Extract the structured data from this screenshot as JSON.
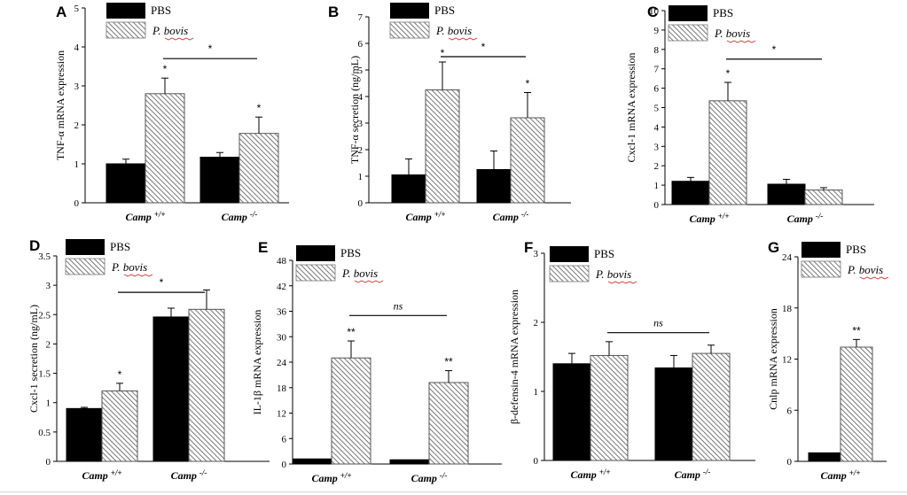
{
  "colors": {
    "pbs": "#000000",
    "p_bovis_stroke": "#555555",
    "axis": "#000000",
    "spellcheck": "#d42a2a"
  },
  "legend": {
    "pbs_label": "PBS",
    "p_bovis_label": "P. bovis"
  },
  "chart_data": [
    {
      "panel": "A",
      "type": "bar",
      "ylabel": "TNF-α mRNA expression",
      "ylim": [
        0,
        5
      ],
      "yticks": [
        0,
        1,
        2,
        3,
        4,
        5
      ],
      "ytick_labels": [
        "0",
        "1",
        "2",
        "3",
        "4",
        "5"
      ],
      "categories": [
        {
          "name": "Camp",
          "sup": "+/+"
        },
        {
          "name": "Camp",
          "sup": "-/-"
        }
      ],
      "series": [
        {
          "name": "PBS",
          "values": [
            1.0,
            1.17
          ],
          "errors": [
            0.12,
            0.12
          ],
          "marks": [
            "",
            ""
          ]
        },
        {
          "name": "P. bovis",
          "values": [
            2.8,
            1.78
          ],
          "errors": [
            0.4,
            0.42
          ],
          "marks": [
            "*",
            "*"
          ]
        }
      ],
      "bracket": {
        "label": "*",
        "y": 3.7
      }
    },
    {
      "panel": "B",
      "type": "bar",
      "ylabel": "TNF-α secretion (ng/mL)",
      "ylim": [
        0,
        7
      ],
      "yticks": [
        0,
        1,
        2,
        3,
        4,
        5,
        6,
        7
      ],
      "ytick_labels": [
        "0",
        "1",
        "2",
        "3",
        "4",
        "5",
        "6",
        "7"
      ],
      "categories": [
        {
          "name": "Camp",
          "sup": "+/+"
        },
        {
          "name": "Camp",
          "sup": "-/-"
        }
      ],
      "series": [
        {
          "name": "PBS",
          "values": [
            1.05,
            1.25
          ],
          "errors": [
            0.6,
            0.7
          ],
          "marks": [
            "",
            ""
          ]
        },
        {
          "name": "P. bovis",
          "values": [
            4.25,
            3.2
          ],
          "errors": [
            1.05,
            0.95
          ],
          "marks": [
            "*",
            "*"
          ]
        }
      ],
      "bracket": {
        "label": "*",
        "y": 5.5
      }
    },
    {
      "panel": "C",
      "type": "bar",
      "ylabel": "Cxcl-1 mRNA expression",
      "ylim": [
        0,
        10
      ],
      "yticks": [
        0,
        1,
        2,
        3,
        4,
        5,
        6,
        7,
        8,
        9,
        10
      ],
      "ytick_labels": [
        "0",
        "1",
        "2",
        "3",
        "4",
        "5",
        "6",
        "7",
        "8",
        "9",
        "10"
      ],
      "categories": [
        {
          "name": "Camp",
          "sup": "+/+"
        },
        {
          "name": "Camp",
          "sup": "-/-"
        }
      ],
      "series": [
        {
          "name": "PBS",
          "values": [
            1.2,
            1.05
          ],
          "errors": [
            0.2,
            0.25
          ],
          "marks": [
            "",
            ""
          ]
        },
        {
          "name": "P. bovis",
          "values": [
            5.35,
            0.75
          ],
          "errors": [
            0.95,
            0.12
          ],
          "marks": [
            "*",
            ""
          ]
        }
      ],
      "bracket": {
        "label": "*",
        "y": 7.5
      }
    },
    {
      "panel": "D",
      "type": "bar",
      "ylabel": "Cxcl-1 secretion (ng/mL)",
      "ylim": [
        0,
        3.5
      ],
      "yticks": [
        0,
        0.5,
        1,
        1.5,
        2,
        2.5,
        3,
        3.5
      ],
      "ytick_labels": [
        "0",
        "0.5",
        "1",
        "1.5",
        "2",
        "2.5",
        "3",
        "3.5"
      ],
      "categories": [
        {
          "name": "Camp",
          "sup": "+/+"
        },
        {
          "name": "Camp",
          "sup": "-/-"
        }
      ],
      "series": [
        {
          "name": "PBS",
          "values": [
            0.9,
            2.46
          ],
          "errors": [
            0.02,
            0.15
          ],
          "marks": [
            "",
            ""
          ]
        },
        {
          "name": "P. bovis",
          "values": [
            1.2,
            2.59
          ],
          "errors": [
            0.13,
            0.33
          ],
          "marks": [
            "*",
            ""
          ]
        }
      ],
      "bracket": {
        "label": "*",
        "y": 2.88
      }
    },
    {
      "panel": "E",
      "type": "bar",
      "ylabel": "IL-1β mRNA expression",
      "ylim": [
        0,
        48
      ],
      "yticks": [
        0,
        6,
        12,
        18,
        24,
        30,
        36,
        42,
        48
      ],
      "ytick_labels": [
        "0",
        "6",
        "12",
        "18",
        "24",
        "30",
        "36",
        "42",
        "48"
      ],
      "categories": [
        {
          "name": "Camp",
          "sup": "+/+"
        },
        {
          "name": "Camp",
          "sup": "-/-"
        }
      ],
      "series": [
        {
          "name": "PBS",
          "values": [
            1.2,
            1.0
          ],
          "errors": [
            0.0,
            0.0
          ],
          "marks": [
            "",
            ""
          ]
        },
        {
          "name": "P. bovis",
          "values": [
            25.0,
            19.2
          ],
          "errors": [
            4.0,
            2.8
          ],
          "marks": [
            "**",
            "**"
          ]
        }
      ],
      "bracket": {
        "label": "ns",
        "y": 35
      }
    },
    {
      "panel": "F",
      "type": "bar",
      "ylabel": "β-defensin-4 mRNA expression",
      "ylim": [
        0,
        3
      ],
      "yticks": [
        0,
        1,
        2,
        3
      ],
      "ytick_labels": [
        "0",
        "1",
        "2",
        "3"
      ],
      "categories": [
        {
          "name": "Camp",
          "sup": "+/+"
        },
        {
          "name": "Camp",
          "sup": "-/-"
        }
      ],
      "series": [
        {
          "name": "PBS",
          "values": [
            1.4,
            1.34
          ],
          "errors": [
            0.15,
            0.18
          ],
          "marks": [
            "",
            ""
          ]
        },
        {
          "name": "P. bovis",
          "values": [
            1.52,
            1.55
          ],
          "errors": [
            0.2,
            0.12
          ],
          "marks": [
            "",
            ""
          ]
        }
      ],
      "bracket": {
        "label": "ns",
        "y": 1.85
      }
    },
    {
      "panel": "G",
      "type": "bar",
      "ylabel": "Cnlp mRNA expression",
      "ylim": [
        0,
        24
      ],
      "yticks": [
        0,
        6,
        12,
        18,
        24
      ],
      "ytick_labels": [
        "0",
        "6",
        "12",
        "18",
        "24"
      ],
      "categories": [
        {
          "name": "Camp",
          "sup": "+/+"
        }
      ],
      "series": [
        {
          "name": "PBS",
          "values": [
            1.0
          ],
          "errors": [
            0.0
          ],
          "marks": [
            ""
          ]
        },
        {
          "name": "P. bovis",
          "values": [
            13.4
          ],
          "errors": [
            0.9
          ],
          "marks": [
            "**"
          ]
        }
      ],
      "bracket": null
    }
  ]
}
